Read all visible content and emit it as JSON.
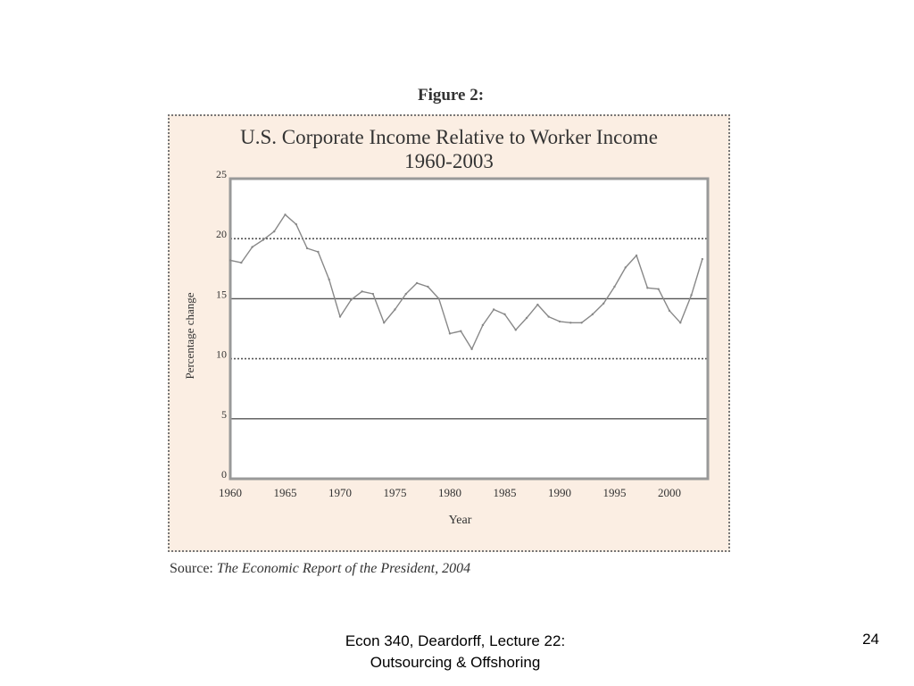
{
  "figure_label": "Figure 2:",
  "source": {
    "prefix": "Source:",
    "title": "The Economic Report of the President, 2004"
  },
  "footer": {
    "line1": "Econ 340, Deardorff, Lecture 22:",
    "line2": "Outsourcing & Offshoring",
    "page_number": "24"
  },
  "colors": {
    "panel_background": "#fbeee3",
    "plot_background": "#ffffff",
    "line": "#888888",
    "gridline": "#555555"
  },
  "chart_data": {
    "type": "line",
    "title": "U.S. Corporate Income Relative to Worker Income",
    "subtitle": "1960-2003",
    "xlabel": "Year",
    "ylabel": "Percentage change",
    "xlim": [
      1960,
      2003.5
    ],
    "ylim": [
      0,
      25
    ],
    "x_ticks": [
      1960,
      1965,
      1970,
      1975,
      1980,
      1985,
      1990,
      1995,
      2000
    ],
    "y_ticks": [
      0,
      5,
      10,
      15,
      20,
      25
    ],
    "grid": "horizontal",
    "x": [
      1960,
      1961,
      1962,
      1963,
      1964,
      1965,
      1966,
      1967,
      1968,
      1969,
      1970,
      1971,
      1972,
      1973,
      1974,
      1975,
      1976,
      1977,
      1978,
      1979,
      1980,
      1981,
      1982,
      1983,
      1984,
      1985,
      1986,
      1987,
      1988,
      1989,
      1990,
      1991,
      1992,
      1993,
      1994,
      1995,
      1996,
      1997,
      1998,
      1999,
      2000,
      2001,
      2002,
      2003
    ],
    "values": [
      18.2,
      18.0,
      19.3,
      19.9,
      20.6,
      22.0,
      21.2,
      19.2,
      18.9,
      16.6,
      13.5,
      14.9,
      15.6,
      15.4,
      13.0,
      14.1,
      15.4,
      16.3,
      16.0,
      15.0,
      12.1,
      12.3,
      10.8,
      12.8,
      14.1,
      13.7,
      12.4,
      13.4,
      14.5,
      13.5,
      13.1,
      13.0,
      13.0,
      13.7,
      14.6,
      16.0,
      17.6,
      18.6,
      15.9,
      15.8,
      14.0,
      13.0,
      15.3,
      18.3
    ]
  }
}
